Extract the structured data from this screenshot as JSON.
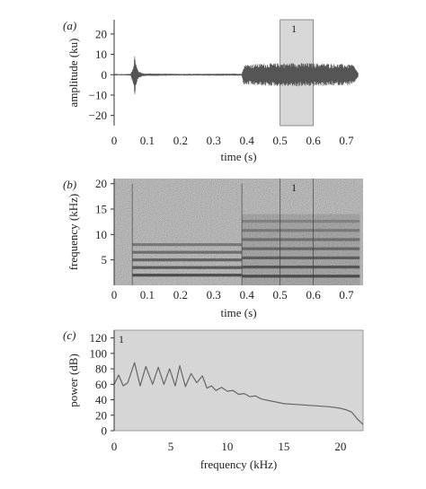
{
  "chart_data": [
    {
      "type": "line",
      "panel_label": "(a)",
      "xlabel": "time (s)",
      "ylabel": "amplitude (ku)",
      "xlim": [
        0,
        0.75
      ],
      "ylim": [
        -25,
        27
      ],
      "x_ticks": [
        "0",
        "0.1",
        "0.2",
        "0.3",
        "0.4",
        "0.5",
        "0.6",
        "0.7"
      ],
      "y_ticks": [
        "20",
        "10",
        "0",
        "−10",
        "−20"
      ],
      "x_tick_values": [
        0,
        0.1,
        0.2,
        0.3,
        0.4,
        0.5,
        0.6,
        0.7
      ],
      "y_tick_values": [
        20,
        10,
        0,
        -10,
        -20
      ],
      "highlight": {
        "label": "1",
        "x_range": [
          0.5,
          0.6
        ]
      },
      "series": [
        {
          "envelope": [
            {
              "x": 0.0,
              "amp": 0.2
            },
            {
              "x": 0.05,
              "amp": 0.4
            },
            {
              "x": 0.058,
              "amp": 4.5
            },
            {
              "x": 0.062,
              "amp": 10
            },
            {
              "x": 0.068,
              "amp": 4
            },
            {
              "x": 0.075,
              "amp": 1.5
            },
            {
              "x": 0.09,
              "amp": 0.6
            },
            {
              "x": 0.2,
              "amp": 0.4
            },
            {
              "x": 0.385,
              "amp": 0.5
            },
            {
              "x": 0.39,
              "amp": 5
            },
            {
              "x": 0.45,
              "amp": 5.5
            },
            {
              "x": 0.55,
              "amp": 5.8
            },
            {
              "x": 0.65,
              "amp": 5.5
            },
            {
              "x": 0.72,
              "amp": 5
            },
            {
              "x": 0.735,
              "amp": 1
            }
          ]
        }
      ],
      "colors": {
        "trace": "#555555",
        "highlight": "#d7d7d7"
      }
    },
    {
      "type": "heatmap",
      "panel_label": "(b)",
      "xlabel": "time (s)",
      "ylabel": "frequency (kHz)",
      "xlim": [
        0,
        0.75
      ],
      "ylim": [
        0,
        21
      ],
      "x_ticks": [
        "0",
        "0.1",
        "0.2",
        "0.3",
        "0.4",
        "0.5",
        "0.6",
        "0.7"
      ],
      "y_ticks": [
        "20",
        "15",
        "10",
        "5"
      ],
      "x_tick_values": [
        0,
        0.1,
        0.2,
        0.3,
        0.4,
        0.5,
        0.6,
        0.7
      ],
      "y_tick_values": [
        20,
        15,
        10,
        5
      ],
      "highlight": {
        "label": "1",
        "x_range": [
          0.5,
          0.6
        ]
      },
      "segments": [
        {
          "x_start": 0.055,
          "x_end": 0.385,
          "harmonics_khz": [
            2.0,
            3.5,
            5.0,
            6.5,
            8.0
          ]
        },
        {
          "x_start": 0.385,
          "x_end": 0.74,
          "harmonics_khz": [
            1.8,
            3.6,
            5.4,
            7.2,
            9.0,
            10.8,
            12.6
          ]
        }
      ],
      "colors": {
        "background": "#a8a8a8",
        "harmonic": "#3c3c3c"
      }
    },
    {
      "type": "line",
      "panel_label": "(c)",
      "xlabel": "frequency (kHz)",
      "ylabel": "power (dB)",
      "xlim": [
        0,
        22
      ],
      "ylim": [
        0,
        130
      ],
      "x_ticks": [
        "0",
        "5",
        "10",
        "15",
        "20"
      ],
      "y_ticks": [
        "120",
        "100",
        "80",
        "60",
        "40",
        "20",
        "0"
      ],
      "x_tick_values": [
        0,
        5,
        10,
        15,
        20
      ],
      "y_tick_values": [
        120,
        100,
        80,
        60,
        40,
        20,
        0
      ],
      "inset_label": "1",
      "series": [
        {
          "x": [
            0.0,
            0.4,
            0.8,
            1.2,
            1.8,
            2.3,
            2.8,
            3.4,
            3.9,
            4.4,
            4.9,
            5.4,
            5.8,
            6.3,
            6.8,
            7.3,
            7.8,
            8.2,
            8.6,
            9.0,
            9.5,
            10.0,
            10.5,
            11.0,
            11.5,
            12.0,
            12.5,
            13.0,
            14.0,
            15.0,
            16.0,
            17.0,
            18.0,
            19.0,
            20.0,
            20.5,
            21.0,
            21.5,
            22.0
          ],
          "y": [
            60,
            72,
            58,
            62,
            88,
            58,
            83,
            60,
            82,
            60,
            80,
            58,
            84,
            57,
            74,
            62,
            71,
            55,
            58,
            52,
            56,
            51,
            52,
            47,
            48,
            44,
            45,
            41,
            38,
            35,
            34,
            33,
            32,
            31,
            29,
            27,
            24,
            15,
            8
          ]
        }
      ],
      "colors": {
        "background": "#d6d6d6",
        "line": "#666666"
      }
    }
  ]
}
